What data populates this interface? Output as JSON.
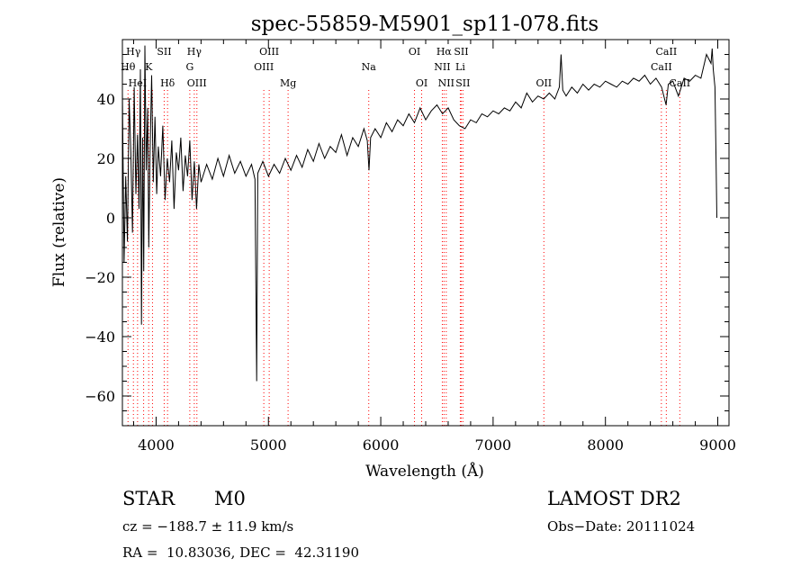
{
  "chart_data": {
    "type": "line",
    "title": "spec-55859-M5901_sp11-078.fits",
    "xlabel": "Wavelength (Å)",
    "ylabel": "Flux (relative)",
    "xlim": [
      3700,
      9100
    ],
    "ylim": [
      -70,
      60
    ],
    "xticks": [
      4000,
      5000,
      6000,
      7000,
      8000,
      9000
    ],
    "yticks": [
      -60,
      -40,
      -20,
      0,
      20,
      40
    ],
    "grid": false,
    "series": [
      {
        "points": [
          [
            3700,
            42
          ],
          [
            3715,
            -15
          ],
          [
            3730,
            14
          ],
          [
            3745,
            -8
          ],
          [
            3760,
            40
          ],
          [
            3775,
            22
          ],
          [
            3790,
            -5
          ],
          [
            3805,
            44
          ],
          [
            3820,
            8
          ],
          [
            3835,
            28
          ],
          [
            3848,
            3
          ],
          [
            3860,
            50
          ],
          [
            3870,
            -36
          ],
          [
            3880,
            27
          ],
          [
            3890,
            -18
          ],
          [
            3900,
            58
          ],
          [
            3912,
            16
          ],
          [
            3925,
            37
          ],
          [
            3935,
            -10
          ],
          [
            3945,
            20
          ],
          [
            3960,
            48
          ],
          [
            3975,
            12
          ],
          [
            3990,
            34
          ],
          [
            4005,
            8
          ],
          [
            4020,
            24
          ],
          [
            4040,
            14
          ],
          [
            4060,
            31
          ],
          [
            4080,
            6
          ],
          [
            4100,
            20
          ],
          [
            4120,
            12
          ],
          [
            4140,
            26
          ],
          [
            4160,
            3
          ],
          [
            4180,
            22
          ],
          [
            4200,
            16
          ],
          [
            4220,
            27
          ],
          [
            4240,
            9
          ],
          [
            4260,
            21
          ],
          [
            4280,
            14
          ],
          [
            4300,
            26
          ],
          [
            4320,
            6
          ],
          [
            4340,
            19
          ],
          [
            4360,
            3
          ],
          [
            4380,
            18
          ],
          [
            4400,
            12
          ],
          [
            4450,
            18
          ],
          [
            4500,
            13
          ],
          [
            4550,
            20
          ],
          [
            4600,
            14
          ],
          [
            4650,
            21
          ],
          [
            4700,
            15
          ],
          [
            4750,
            19
          ],
          [
            4800,
            14
          ],
          [
            4850,
            18
          ],
          [
            4880,
            13
          ],
          [
            4895,
            -55
          ],
          [
            4905,
            15
          ],
          [
            4950,
            19
          ],
          [
            5000,
            14
          ],
          [
            5050,
            18
          ],
          [
            5100,
            15
          ],
          [
            5150,
            20
          ],
          [
            5200,
            16
          ],
          [
            5250,
            21
          ],
          [
            5300,
            17
          ],
          [
            5350,
            23
          ],
          [
            5400,
            19
          ],
          [
            5450,
            25
          ],
          [
            5500,
            20
          ],
          [
            5550,
            24
          ],
          [
            5600,
            22
          ],
          [
            5650,
            28
          ],
          [
            5700,
            21
          ],
          [
            5750,
            27
          ],
          [
            5800,
            24
          ],
          [
            5850,
            30
          ],
          [
            5880,
            26
          ],
          [
            5895,
            16
          ],
          [
            5910,
            27
          ],
          [
            5950,
            30
          ],
          [
            6000,
            27
          ],
          [
            6050,
            32
          ],
          [
            6100,
            29
          ],
          [
            6150,
            33
          ],
          [
            6200,
            31
          ],
          [
            6250,
            35
          ],
          [
            6300,
            32
          ],
          [
            6350,
            37
          ],
          [
            6400,
            33
          ],
          [
            6450,
            36
          ],
          [
            6500,
            38
          ],
          [
            6550,
            35
          ],
          [
            6600,
            37
          ],
          [
            6650,
            33
          ],
          [
            6700,
            31
          ],
          [
            6750,
            30
          ],
          [
            6800,
            33
          ],
          [
            6850,
            32
          ],
          [
            6900,
            35
          ],
          [
            6950,
            34
          ],
          [
            7000,
            36
          ],
          [
            7050,
            35
          ],
          [
            7100,
            37
          ],
          [
            7150,
            36
          ],
          [
            7200,
            39
          ],
          [
            7250,
            37
          ],
          [
            7300,
            42
          ],
          [
            7350,
            39
          ],
          [
            7400,
            41
          ],
          [
            7450,
            40
          ],
          [
            7500,
            42
          ],
          [
            7550,
            40
          ],
          [
            7590,
            44
          ],
          [
            7605,
            55
          ],
          [
            7620,
            43
          ],
          [
            7650,
            41
          ],
          [
            7700,
            44
          ],
          [
            7750,
            42
          ],
          [
            7800,
            45
          ],
          [
            7850,
            43
          ],
          [
            7900,
            45
          ],
          [
            7950,
            44
          ],
          [
            8000,
            46
          ],
          [
            8050,
            45
          ],
          [
            8100,
            44
          ],
          [
            8150,
            46
          ],
          [
            8200,
            45
          ],
          [
            8250,
            47
          ],
          [
            8300,
            46
          ],
          [
            8350,
            48
          ],
          [
            8400,
            45
          ],
          [
            8450,
            47
          ],
          [
            8500,
            44
          ],
          [
            8540,
            38
          ],
          [
            8560,
            45
          ],
          [
            8600,
            46
          ],
          [
            8650,
            41
          ],
          [
            8700,
            47
          ],
          [
            8750,
            46
          ],
          [
            8800,
            48
          ],
          [
            8850,
            47
          ],
          [
            8900,
            55
          ],
          [
            8940,
            52
          ],
          [
            8950,
            57
          ],
          [
            8960,
            50
          ],
          [
            8975,
            44
          ],
          [
            8985,
            20
          ],
          [
            8992,
            0
          ]
        ]
      }
    ],
    "line_markers": [
      {
        "wavelength": 3750,
        "label": "Hθ",
        "row": 1
      },
      {
        "wavelength": 3798,
        "label": "Hγ",
        "row": 0
      },
      {
        "wavelength": 3835,
        "label": "HeI",
        "row": 2
      },
      {
        "wavelength": 3889,
        "label": "",
        "row": 2
      },
      {
        "wavelength": 3934,
        "label": "K",
        "row": 1
      },
      {
        "wavelength": 3968,
        "label": "",
        "row": 1
      },
      {
        "wavelength": 4072,
        "label": "SII",
        "row": 0
      },
      {
        "wavelength": 4102,
        "label": "Hδ",
        "row": 2
      },
      {
        "wavelength": 4300,
        "label": "G",
        "row": 1
      },
      {
        "wavelength": 4340,
        "label": "Hγ",
        "row": 0
      },
      {
        "wavelength": 4363,
        "label": "OIII",
        "row": 2
      },
      {
        "wavelength": 4959,
        "label": "OIII",
        "row": 1
      },
      {
        "wavelength": 5007,
        "label": "OIII",
        "row": 0
      },
      {
        "wavelength": 5175,
        "label": "Mg",
        "row": 2
      },
      {
        "wavelength": 5893,
        "label": "Na",
        "row": 1
      },
      {
        "wavelength": 6300,
        "label": "OI",
        "row": 0
      },
      {
        "wavelength": 6364,
        "label": "OI",
        "row": 2
      },
      {
        "wavelength": 6548,
        "label": "NII",
        "row": 1
      },
      {
        "wavelength": 6563,
        "label": "Hα",
        "row": 0
      },
      {
        "wavelength": 6583,
        "label": "NII",
        "row": 2
      },
      {
        "wavelength": 6708,
        "label": "Li",
        "row": 1
      },
      {
        "wavelength": 6716,
        "label": "SII",
        "row": 0
      },
      {
        "wavelength": 6731,
        "label": "SII",
        "row": 2
      },
      {
        "wavelength": 7452,
        "label": "OII",
        "row": 2
      },
      {
        "wavelength": 8498,
        "label": "CaII",
        "row": 1
      },
      {
        "wavelength": 8542,
        "label": "CaII",
        "row": 0
      },
      {
        "wavelength": 8662,
        "label": "CaII",
        "row": 2
      }
    ]
  },
  "info": {
    "class_label": "STAR",
    "subclass": "M0",
    "survey": "LAMOST DR2",
    "redshift_text": "cz = −188.7 ± 11.9 km/s",
    "obs_date_text": "Obs−Date: 20111024",
    "coords_text": "RA =  10.83036, DEC =  42.31190"
  },
  "colors": {
    "line": "#000000",
    "marker": "#ff0000"
  }
}
